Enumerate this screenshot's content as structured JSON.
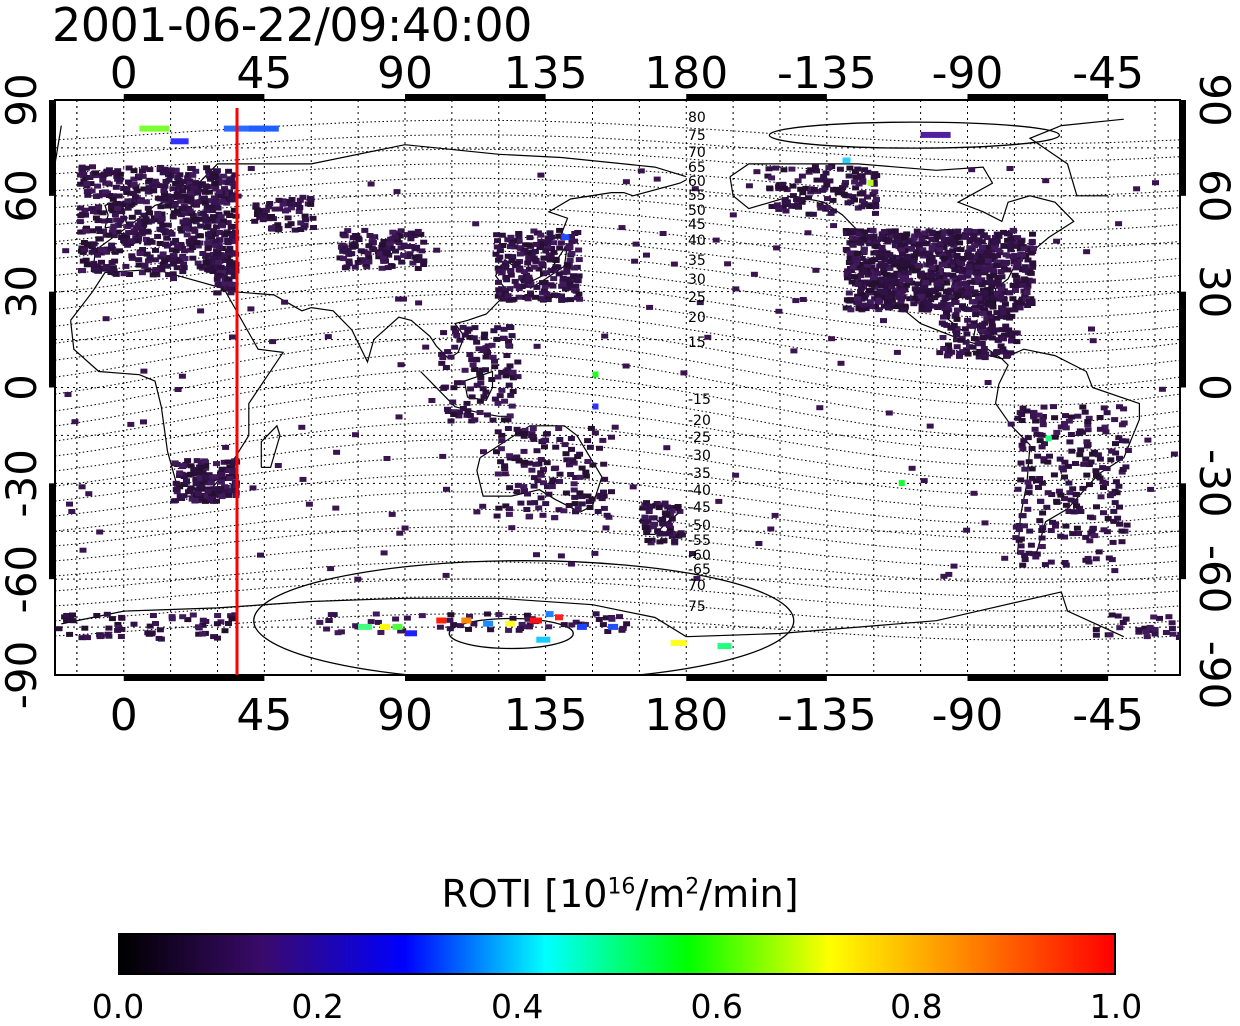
{
  "map": {
    "timestamp": "2001-06-22/09:40:00",
    "top_axis_labels": [
      "0",
      "45",
      "90",
      "135",
      "180",
      "-135",
      "-90",
      "-45"
    ],
    "bottom_axis_labels": [
      "0",
      "45",
      "90",
      "135",
      "180",
      "-135",
      "-90",
      "-45"
    ],
    "left_axis_labels": [
      "90",
      "60",
      "30",
      "0",
      "-30",
      "-60",
      "-90"
    ],
    "right_axis_labels": [
      "90",
      "60",
      "30",
      "0",
      "-30",
      "-60",
      "-90"
    ],
    "magnetic_latitude_labels_north": [
      "80",
      "75",
      "70",
      "65",
      "60",
      "55",
      "50",
      "45",
      "40",
      "35",
      "30",
      "25",
      "20",
      "15"
    ],
    "magnetic_latitude_labels_south": [
      "-15",
      "-20",
      "-25",
      "-30",
      "-35",
      "-40",
      "-45",
      "-50",
      "-55",
      "-60",
      "-65",
      "70",
      "75"
    ],
    "terminator_longitude": 35,
    "terminator_color": "#ff0000",
    "coastline_color": "#000000"
  },
  "colorbar": {
    "title": "ROTI  [10",
    "title_sup1": "16",
    "title_mid": "/m",
    "title_sup2": "2",
    "title_end": "/min]",
    "tick_labels": [
      "0.0",
      "0.2",
      "0.4",
      "0.6",
      "0.8",
      "1.0"
    ],
    "range": [
      0.0,
      1.0
    ],
    "colors": [
      "#000000",
      "#3a0a6a",
      "#0000ff",
      "#00ffff",
      "#00ff00",
      "#ffff00",
      "#ff8000",
      "#ff0000"
    ]
  }
}
